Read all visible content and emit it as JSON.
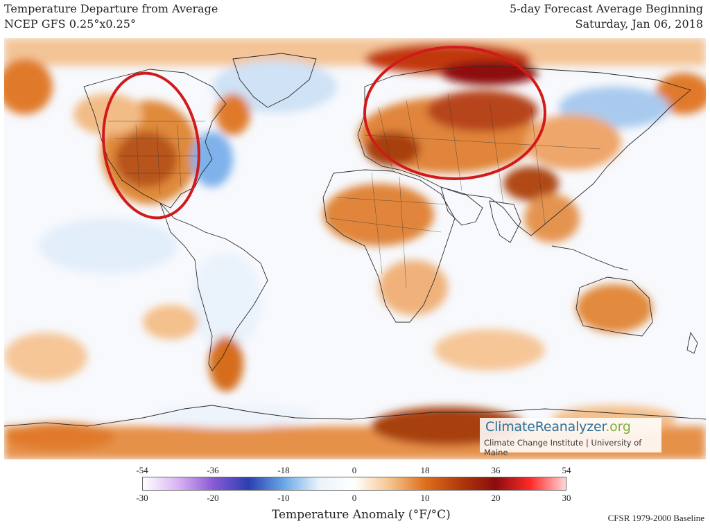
{
  "header": {
    "title": "Temperature Departure from Average",
    "model": "NCEP GFS 0.25°x0.25°",
    "forecast_label": "5-day Forecast Average Beginning",
    "date": "Saturday, Jan 06, 2018"
  },
  "logo": {
    "name_main": "ClimateReanalyzer",
    "name_suffix": ".org",
    "affiliation": "Climate Change Institute | University of Maine"
  },
  "colorbar": {
    "fahrenheit_ticks": [
      "-54",
      "-36",
      "-18",
      "0",
      "18",
      "36",
      "54"
    ],
    "celsius_ticks": [
      "-30",
      "-20",
      "-10",
      "0",
      "10",
      "20",
      "30"
    ],
    "title": "Temperature Anomaly (°F/°C)",
    "colors": [
      "#ffffff",
      "#d9b3f2",
      "#8a5ad6",
      "#2a3fb0",
      "#6aa8e6",
      "#eaf3fb",
      "#ffffff",
      "#f5c58f",
      "#e0701c",
      "#b03a0a",
      "#8c0c0c",
      "#ff2a2a",
      "#ffd6d6"
    ]
  },
  "baseline": "CFSR 1979-2000 Baseline",
  "annotations": [
    {
      "label": "north-america-warm-anomaly-circle",
      "color": "#d11a1a"
    },
    {
      "label": "europe-russia-warm-anomaly-circle",
      "color": "#d11a1a"
    }
  ]
}
